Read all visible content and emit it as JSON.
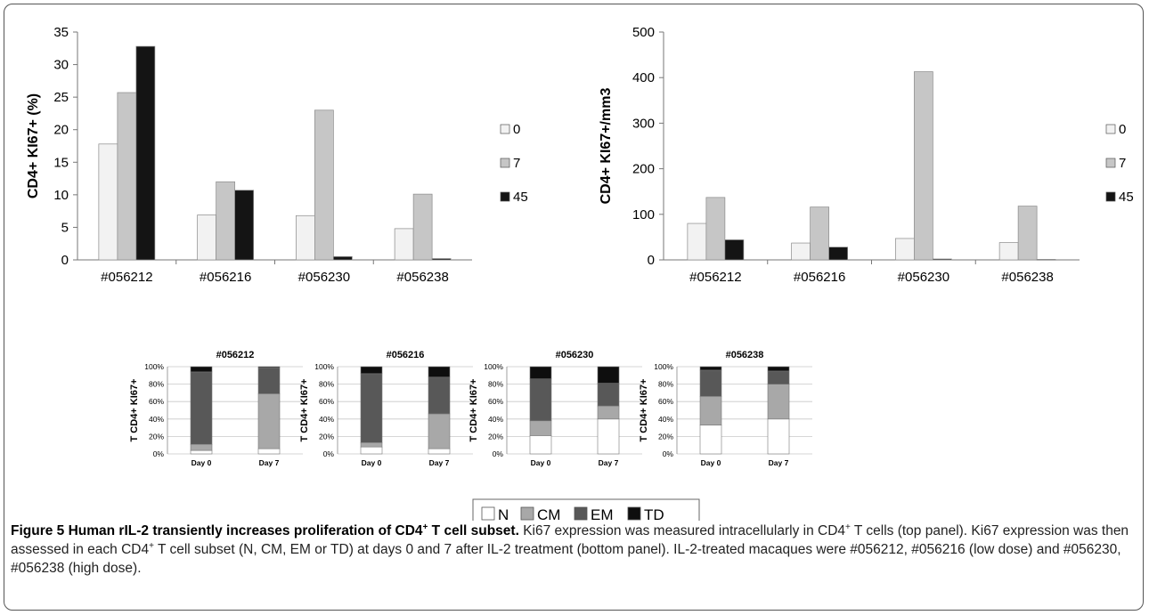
{
  "chart_data": [
    {
      "type": "bar",
      "ylabel": "CD4+ KI67+ (%)",
      "categories": [
        "#056212",
        "#056216",
        "#056230",
        "#056238"
      ],
      "ylim": [
        0,
        35
      ],
      "yticks": [
        0,
        5,
        10,
        15,
        20,
        25,
        30,
        35
      ],
      "legend_placement": "right",
      "series": [
        {
          "name": "0",
          "color": "#f2f2f2",
          "values": [
            17.8,
            6.9,
            6.8,
            4.8
          ]
        },
        {
          "name": "7",
          "color": "#c6c6c6",
          "values": [
            25.7,
            12.0,
            23.0,
            10.1
          ]
        },
        {
          "name": "45",
          "color": "#141414",
          "values": [
            32.8,
            10.7,
            0.5,
            0.2
          ]
        }
      ]
    },
    {
      "type": "bar",
      "ylabel": "CD4+ KI67+/mm3",
      "categories": [
        "#056212",
        "#056216",
        "#056230",
        "#056238"
      ],
      "ylim": [
        0,
        500
      ],
      "yticks": [
        0,
        100,
        200,
        300,
        400,
        500
      ],
      "legend_placement": "right",
      "series": [
        {
          "name": "0",
          "color": "#f2f2f2",
          "values": [
            80,
            37,
            47,
            38
          ]
        },
        {
          "name": "7",
          "color": "#c6c6c6",
          "values": [
            137,
            116,
            413,
            118
          ]
        },
        {
          "name": "45",
          "color": "#141414",
          "values": [
            44,
            28,
            2,
            1
          ]
        }
      ]
    },
    {
      "type": "bar",
      "stacked": "percent",
      "title": "#056212",
      "ylabel": "T CD4+ KI67+",
      "categories": [
        "Day 0",
        "Day 7"
      ],
      "ylim": [
        0,
        100
      ],
      "yticks": [
        "0%",
        "20%",
        "40%",
        "60%",
        "80%",
        "100%"
      ],
      "series": [
        {
          "name": "N",
          "values": [
            4,
            6
          ]
        },
        {
          "name": "CM",
          "values": [
            7,
            63
          ]
        },
        {
          "name": "EM",
          "values": [
            83,
            30
          ]
        },
        {
          "name": "TD",
          "values": [
            6,
            1
          ]
        }
      ]
    },
    {
      "type": "bar",
      "stacked": "percent",
      "title": "#056216",
      "ylabel": "T CD4+ KI67+",
      "categories": [
        "Day 0",
        "Day 7"
      ],
      "ylim": [
        0,
        100
      ],
      "yticks": [
        "0%",
        "20%",
        "40%",
        "60%",
        "80%",
        "100%"
      ],
      "series": [
        {
          "name": "N",
          "values": [
            8,
            6
          ]
        },
        {
          "name": "CM",
          "values": [
            5,
            40
          ]
        },
        {
          "name": "EM",
          "values": [
            79,
            42
          ]
        },
        {
          "name": "TD",
          "values": [
            8,
            12
          ]
        }
      ]
    },
    {
      "type": "bar",
      "stacked": "percent",
      "title": "#056230",
      "ylabel": "T CD4+ KI67+",
      "categories": [
        "Day 0",
        "Day 7"
      ],
      "ylim": [
        0,
        100
      ],
      "yticks": [
        "0%",
        "20%",
        "40%",
        "60%",
        "80%",
        "100%"
      ],
      "series": [
        {
          "name": "N",
          "values": [
            21,
            40
          ]
        },
        {
          "name": "CM",
          "values": [
            17,
            15
          ]
        },
        {
          "name": "EM",
          "values": [
            48,
            26
          ]
        },
        {
          "name": "TD",
          "values": [
            14,
            19
          ]
        }
      ]
    },
    {
      "type": "bar",
      "stacked": "percent",
      "title": "#056238",
      "ylabel": "T CD4+ KI67+",
      "categories": [
        "Day 0",
        "Day 7"
      ],
      "ylim": [
        0,
        100
      ],
      "yticks": [
        "0%",
        "20%",
        "40%",
        "60%",
        "80%",
        "100%"
      ],
      "series": [
        {
          "name": "N",
          "values": [
            33,
            40
          ]
        },
        {
          "name": "CM",
          "values": [
            33,
            40
          ]
        },
        {
          "name": "EM",
          "values": [
            30,
            15
          ]
        },
        {
          "name": "TD",
          "values": [
            4,
            5
          ]
        }
      ]
    }
  ],
  "subset_legend": [
    {
      "name": "N",
      "color": "#ffffff"
    },
    {
      "name": "CM",
      "color": "#a8a8a8"
    },
    {
      "name": "EM",
      "color": "#585858"
    },
    {
      "name": "TD",
      "color": "#0e0e0e"
    }
  ],
  "caption": {
    "title_prefix": "Figure 5 Human rIL-2 transiently increases proliferation of CD4",
    "title_sup": "+",
    "title_suffix": " T cell subset.",
    "s1": " Ki67 expression was measured intracellularly in CD4",
    "s1_sup": "+",
    "s2": " T cells (top panel). Ki67 expression was then assessed in each CD4",
    "s2_sup": "+",
    "s3": " T cell subset (N, CM, EM or TD) at days 0 and 7 after IL-2 treatment (bottom panel). IL-2-treated macaques were #056212, #056216 (low dose) and #056230, #056238 (high dose)."
  }
}
